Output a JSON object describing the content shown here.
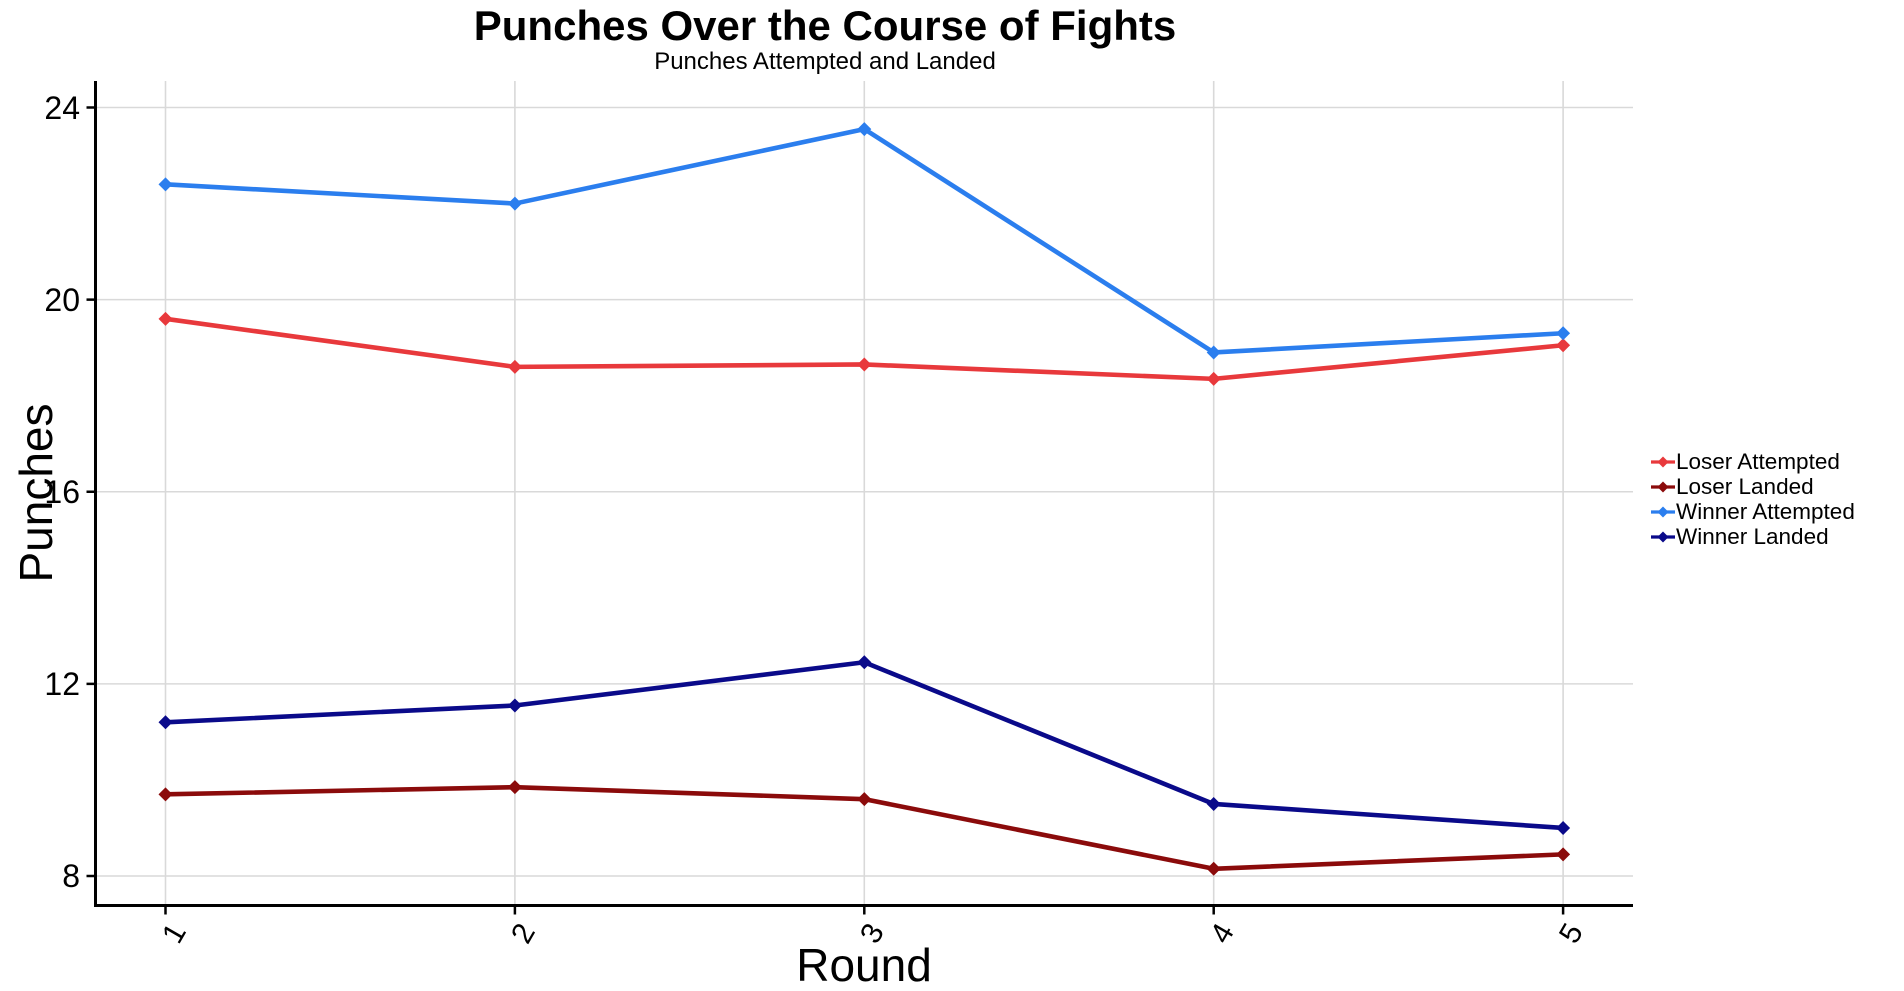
{
  "chart_data": {
    "type": "line",
    "title": "Punches Over the Course of Fights",
    "subtitle": "Punches Attempted and Landed",
    "xlabel": "Round",
    "ylabel": "Punches",
    "categories": [
      "1",
      "2",
      "3",
      "4",
      "5"
    ],
    "y_ticks": [
      8,
      12,
      16,
      20,
      24
    ],
    "ylim": [
      7.3,
      24.8
    ],
    "grid": true,
    "marker": "diamond",
    "legend_position": "right",
    "series": [
      {
        "name": "Loser Attempted",
        "color": "#E8393C",
        "values": [
          19.6,
          18.6,
          18.65,
          18.35,
          19.05
        ]
      },
      {
        "name": "Loser Landed",
        "color": "#8B0B0B",
        "values": [
          9.7,
          9.85,
          9.6,
          8.15,
          8.45
        ]
      },
      {
        "name": "Winner Attempted",
        "color": "#2B7EEE",
        "values": [
          22.4,
          22.0,
          23.55,
          18.9,
          19.3
        ]
      },
      {
        "name": "Winner Landed",
        "color": "#0A0A8A",
        "values": [
          11.2,
          11.55,
          12.45,
          9.5,
          9.0
        ]
      }
    ]
  },
  "colors": {
    "background": "#FFFFFF",
    "grid": "#D9D9D9",
    "axis": "#000000",
    "text": "#000000"
  }
}
